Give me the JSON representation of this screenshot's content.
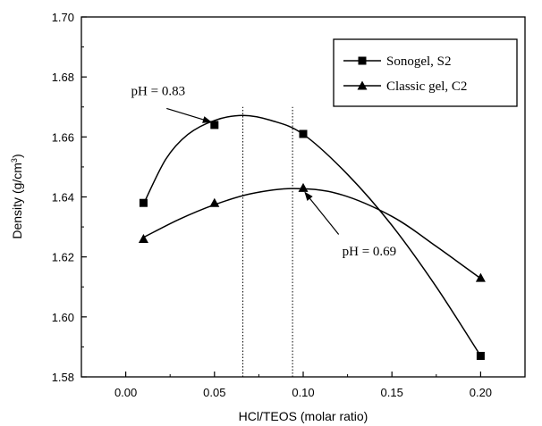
{
  "chart_data": {
    "type": "line",
    "xlabel": "HCl/TEOS (molar ratio)",
    "ylabel_main": "Density (g/cm",
    "ylabel_sup": "3",
    "ylabel_close": ")",
    "xlim": [
      -0.025,
      0.225
    ],
    "ylim": [
      1.58,
      1.7
    ],
    "xticks": [
      0.0,
      0.05,
      0.1,
      0.15,
      0.2
    ],
    "xtick_labels": [
      "0.00",
      "0.05",
      "0.10",
      "0.15",
      "0.20"
    ],
    "yticks": [
      1.58,
      1.6,
      1.62,
      1.64,
      1.66,
      1.68,
      1.7
    ],
    "ytick_labels": [
      "1.58",
      "1.60",
      "1.62",
      "1.64",
      "1.66",
      "1.68",
      "1.70"
    ],
    "legend_position": "top-right",
    "series": [
      {
        "name": "Sonogel, S2",
        "marker": "square",
        "x": [
          0.01,
          0.05,
          0.1,
          0.2
        ],
        "y": [
          1.638,
          1.664,
          1.661,
          1.587
        ],
        "fit_x": [
          0.01,
          0.0225,
          0.035,
          0.05,
          0.066,
          0.082,
          0.1,
          0.125,
          0.15,
          0.175,
          0.2
        ],
        "fit_y": [
          1.6376,
          1.6525,
          1.6608,
          1.6655,
          1.6672,
          1.6655,
          1.6609,
          1.6475,
          1.6305,
          1.61,
          1.587
        ]
      },
      {
        "name": "Classic gel, C2",
        "marker": "triangle",
        "x": [
          0.01,
          0.05,
          0.1,
          0.2
        ],
        "y": [
          1.626,
          1.638,
          1.643,
          1.613
        ],
        "fit_x": [
          0.01,
          0.03,
          0.05,
          0.07,
          0.094,
          0.12,
          0.15,
          0.175,
          0.2
        ],
        "fit_y": [
          1.6265,
          1.6325,
          1.6374,
          1.641,
          1.6428,
          1.641,
          1.6335,
          1.6235,
          1.6128
        ]
      }
    ],
    "vlines": [
      0.066,
      0.094
    ],
    "annotations": [
      {
        "text": "pH = 0.83",
        "label_x": 0.003,
        "label_y": 1.674,
        "arrow_from_x": 0.023,
        "arrow_from_y": 1.6695,
        "arrow_to_x": 0.048,
        "arrow_to_y": 1.665
      },
      {
        "text": "pH = 0.69",
        "label_x": 0.122,
        "label_y": 1.6205,
        "arrow_from_x": 0.12,
        "arrow_from_y": 1.6275,
        "arrow_to_x": 0.101,
        "arrow_to_y": 1.6415
      }
    ]
  }
}
